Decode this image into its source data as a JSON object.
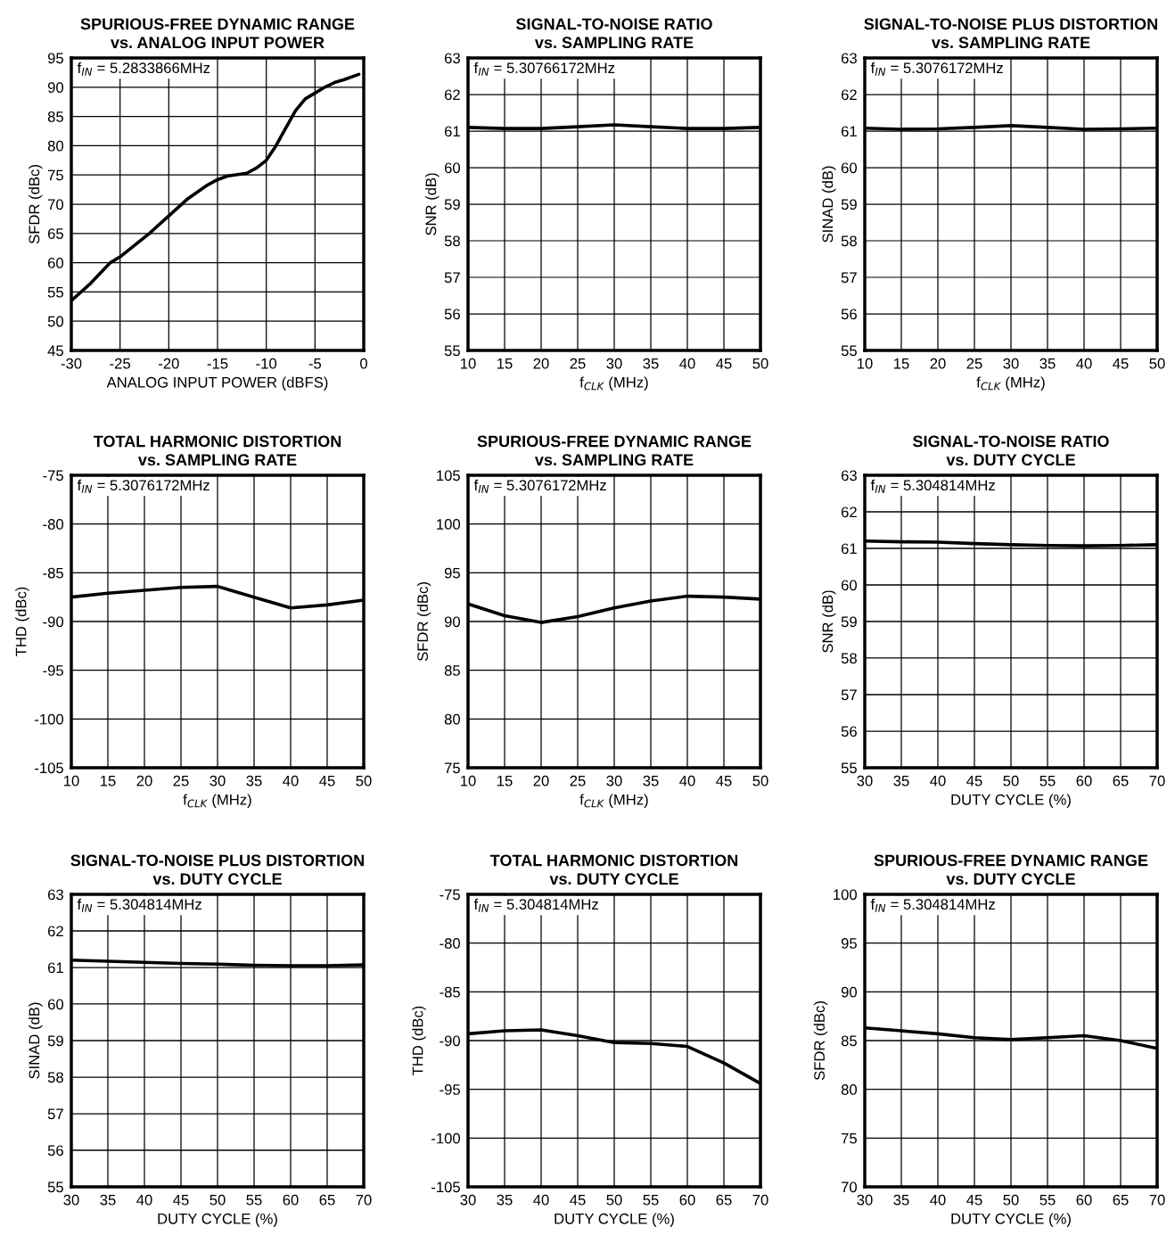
{
  "chart_data": [
    {
      "type": "line",
      "title": "SPURIOUS-FREE DYNAMIC RANGE\nvs. ANALOG INPUT POWER",
      "xlabel": "ANALOG INPUT POWER (dBFS)",
      "ylabel": "SFDR (dBc)",
      "annotations": [
        "f$_{IN}$ = 5.2833866MHz"
      ],
      "x": [
        -30,
        -28,
        -26,
        -25,
        -22,
        -20,
        -18,
        -16,
        -15,
        -14,
        -12,
        -11,
        -10,
        -9,
        -8,
        -7,
        -6,
        -5,
        -4,
        -3,
        -2,
        -0.5
      ],
      "series": [
        {
          "color": "#000000",
          "values": [
            53.5,
            56.5,
            60,
            61,
            65,
            68,
            71,
            73.3,
            74.2,
            74.8,
            75.3,
            76.2,
            77.5,
            80,
            83,
            86,
            88,
            89,
            90,
            90.8,
            91.3,
            92.2
          ]
        }
      ],
      "xlim": [
        -30,
        0
      ],
      "xticks": [
        -30,
        -25,
        -20,
        -15,
        -10,
        -5,
        0
      ],
      "ylim": [
        45,
        95
      ],
      "yticks": [
        45,
        50,
        55,
        60,
        65,
        70,
        75,
        80,
        85,
        90,
        95
      ],
      "grid": true
    },
    {
      "type": "line",
      "title": "SIGNAL-TO-NOISE RATIO\nvs. SAMPLING RATE",
      "xlabel": "f$_{CLK}$ (MHz)",
      "ylabel": "SNR (dB)",
      "annotations": [
        "f$_{IN}$ = 5.30766172MHz"
      ],
      "x": [
        10,
        15,
        20,
        25,
        30,
        35,
        40,
        45,
        50
      ],
      "series": [
        {
          "color": "#000000",
          "values": [
            61.1,
            61.07,
            61.07,
            61.12,
            61.17,
            61.12,
            61.07,
            61.07,
            61.1
          ]
        }
      ],
      "xlim": [
        10,
        50
      ],
      "xticks": [
        10,
        15,
        20,
        25,
        30,
        35,
        40,
        45,
        50
      ],
      "ylim": [
        55,
        63
      ],
      "yticks": [
        55,
        56,
        57,
        58,
        59,
        60,
        61,
        62,
        63
      ],
      "grid": true
    },
    {
      "type": "line",
      "title": "SIGNAL-TO-NOISE PLUS DISTORTION\nvs. SAMPLING RATE",
      "xlabel": "f$_{CLK}$ (MHz)",
      "ylabel": "SINAD (dB)",
      "annotations": [
        "f$_{IN}$ = 5.3076172MHz"
      ],
      "x": [
        10,
        15,
        20,
        25,
        30,
        35,
        40,
        45,
        50
      ],
      "series": [
        {
          "color": "#000000",
          "values": [
            61.08,
            61.05,
            61.06,
            61.1,
            61.15,
            61.1,
            61.05,
            61.06,
            61.08
          ]
        }
      ],
      "xlim": [
        10,
        50
      ],
      "xticks": [
        10,
        15,
        20,
        25,
        30,
        35,
        40,
        45,
        50
      ],
      "ylim": [
        55,
        63
      ],
      "yticks": [
        55,
        56,
        57,
        58,
        59,
        60,
        61,
        62,
        63
      ],
      "grid": true
    },
    {
      "type": "line",
      "title": "TOTAL HARMONIC DISTORTION\nvs. SAMPLING RATE",
      "xlabel": "f$_{CLK}$ (MHz)",
      "ylabel": "THD (dBc)",
      "annotations": [
        "f$_{IN}$ = 5.3076172MHz"
      ],
      "x": [
        10,
        15,
        20,
        25,
        30,
        35,
        40,
        45,
        50
      ],
      "series": [
        {
          "color": "#000000",
          "values": [
            -87.5,
            -87.1,
            -86.8,
            -86.5,
            -86.4,
            -87.5,
            -88.6,
            -88.3,
            -87.8
          ]
        }
      ],
      "xlim": [
        10,
        50
      ],
      "xticks": [
        10,
        15,
        20,
        25,
        30,
        35,
        40,
        45,
        50
      ],
      "ylim": [
        -105,
        -75
      ],
      "yticks": [
        -105,
        -100,
        -95,
        -90,
        -85,
        -80,
        -75
      ],
      "grid": true
    },
    {
      "type": "line",
      "title": "SPURIOUS-FREE DYNAMIC RANGE\nvs. SAMPLING RATE",
      "xlabel": "f$_{CLK}$ (MHz)",
      "ylabel": "SFDR (dBc)",
      "annotations": [
        "f$_{IN}$ = 5.3076172MHz"
      ],
      "x": [
        10,
        15,
        20,
        25,
        30,
        35,
        40,
        45,
        50
      ],
      "series": [
        {
          "color": "#000000",
          "values": [
            91.8,
            90.6,
            89.9,
            90.5,
            91.4,
            92.1,
            92.6,
            92.5,
            92.3
          ]
        }
      ],
      "xlim": [
        10,
        50
      ],
      "xticks": [
        10,
        15,
        20,
        25,
        30,
        35,
        40,
        45,
        50
      ],
      "ylim": [
        75,
        105
      ],
      "yticks": [
        75,
        80,
        85,
        90,
        95,
        100,
        105
      ],
      "grid": true
    },
    {
      "type": "line",
      "title": "SIGNAL-TO-NOISE RATIO\nvs. DUTY CYCLE",
      "xlabel": "DUTY CYCLE (%)",
      "ylabel": "SNR (dB)",
      "annotations": [
        "f$_{IN}$ = 5.304814MHz"
      ],
      "x": [
        30,
        35,
        40,
        45,
        50,
        55,
        60,
        65,
        70
      ],
      "series": [
        {
          "color": "#000000",
          "values": [
            61.2,
            61.18,
            61.17,
            61.13,
            61.1,
            61.08,
            61.07,
            61.08,
            61.1
          ]
        }
      ],
      "xlim": [
        30,
        70
      ],
      "xticks": [
        30,
        35,
        40,
        45,
        50,
        55,
        60,
        65,
        70
      ],
      "ylim": [
        55,
        63
      ],
      "yticks": [
        55,
        56,
        57,
        58,
        59,
        60,
        61,
        62,
        63
      ],
      "grid": true
    },
    {
      "type": "line",
      "title": "SIGNAL-TO-NOISE PLUS DISTORTION\nvs. DUTY CYCLE",
      "xlabel": "DUTY CYCLE (%)",
      "ylabel": "SINAD (dB)",
      "annotations": [
        "f$_{IN}$ = 5.304814MHz"
      ],
      "x": [
        30,
        35,
        40,
        45,
        50,
        55,
        60,
        65,
        70
      ],
      "series": [
        {
          "color": "#000000",
          "values": [
            61.2,
            61.17,
            61.14,
            61.11,
            61.09,
            61.06,
            61.05,
            61.05,
            61.07
          ]
        }
      ],
      "xlim": [
        30,
        70
      ],
      "xticks": [
        30,
        35,
        40,
        45,
        50,
        55,
        60,
        65,
        70
      ],
      "ylim": [
        55,
        63
      ],
      "yticks": [
        55,
        56,
        57,
        58,
        59,
        60,
        61,
        62,
        63
      ],
      "grid": true
    },
    {
      "type": "line",
      "title": "TOTAL HARMONIC DISTORTION\nvs. DUTY CYCLE",
      "xlabel": "DUTY CYCLE (%)",
      "ylabel": "THD (dBc)",
      "annotations": [
        "f$_{IN}$ = 5.304814MHz"
      ],
      "x": [
        30,
        35,
        40,
        45,
        50,
        55,
        60,
        65,
        70
      ],
      "series": [
        {
          "color": "#000000",
          "values": [
            -89.3,
            -89.0,
            -88.9,
            -89.5,
            -90.2,
            -90.3,
            -90.6,
            -92.3,
            -94.4
          ]
        }
      ],
      "xlim": [
        30,
        70
      ],
      "xticks": [
        30,
        35,
        40,
        45,
        50,
        55,
        60,
        65,
        70
      ],
      "ylim": [
        -105,
        -75
      ],
      "yticks": [
        -105,
        -100,
        -95,
        -90,
        -85,
        -80,
        -75
      ],
      "grid": true
    },
    {
      "type": "line",
      "title": "SPURIOUS-FREE DYNAMIC RANGE\nvs. DUTY CYCLE",
      "xlabel": "DUTY CYCLE (%)",
      "ylabel": "SFDR (dBc)",
      "annotations": [
        "f$_{IN}$ = 5.304814MHz"
      ],
      "x": [
        30,
        35,
        40,
        45,
        50,
        55,
        60,
        65,
        70
      ],
      "series": [
        {
          "color": "#000000",
          "values": [
            86.3,
            86.0,
            85.7,
            85.3,
            85.1,
            85.3,
            85.5,
            85.0,
            84.2
          ]
        }
      ],
      "xlim": [
        30,
        70
      ],
      "xticks": [
        30,
        35,
        40,
        45,
        50,
        55,
        60,
        65,
        70
      ],
      "ylim": [
        70,
        100
      ],
      "yticks": [
        70,
        75,
        80,
        85,
        90,
        95,
        100
      ],
      "grid": true
    }
  ]
}
